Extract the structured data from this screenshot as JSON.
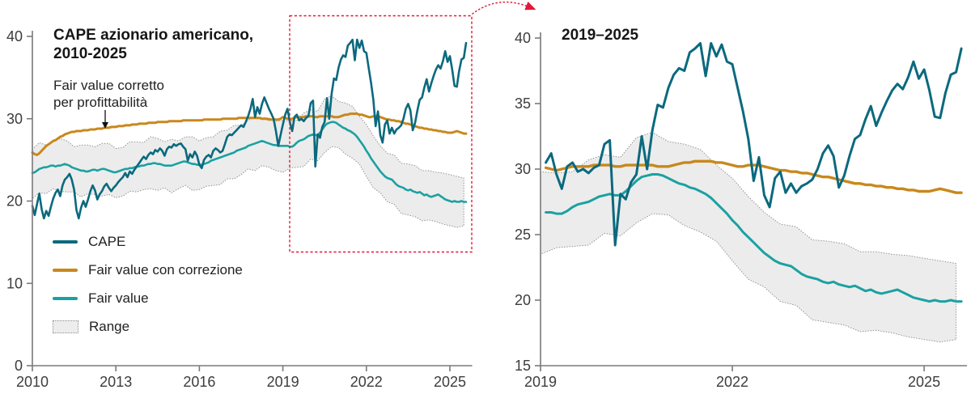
{
  "colors": {
    "cape": "#0b697e",
    "fair_value": "#1ba1a1",
    "fair_value_corrected": "#c8881c",
    "range_fill": "#ececec",
    "range_edge": "#8f8f8f",
    "highlight_red": "#e31837",
    "axis": "#7a7a7a",
    "tick_text": "#3d3d3d"
  },
  "left_chart": {
    "title_line1": "CAPE azionario americano,",
    "title_line2": "2010-2025",
    "annotation_line1": "Fair value corretto",
    "annotation_line2": "per profittabilità",
    "x_domain": [
      2010,
      2025.8
    ],
    "y_domain": [
      0,
      40
    ],
    "x_ticks": [
      2010,
      2013,
      2016,
      2019,
      2022,
      2025
    ],
    "y_ticks": [
      0,
      10,
      20,
      30,
      40
    ]
  },
  "right_chart": {
    "title": "2019–2025",
    "x_domain": [
      2019,
      2025.67
    ],
    "y_domain": [
      15,
      40
    ],
    "x_ticks": [
      2019,
      2022,
      2025
    ],
    "y_ticks": [
      15,
      20,
      25,
      30,
      35,
      40
    ],
    "data_start_year": 2019
  },
  "legend": {
    "items": [
      {
        "label": "CAPE",
        "color": "#0b697e",
        "swatch": "line"
      },
      {
        "label": "Fair value con correzione",
        "color": "#c8881c",
        "swatch": "line"
      },
      {
        "label": "Fair value",
        "color": "#1ba1a1",
        "swatch": "line"
      },
      {
        "label": "Range",
        "color": "#ededed",
        "swatch": "band"
      }
    ]
  },
  "chart_data": {
    "type": "line",
    "x_start": 2010.0,
    "x_step": 0.083333,
    "x_unit": "year (monthly samples)",
    "series": [
      {
        "name": "CAPE",
        "color": "#0b697e",
        "values": [
          19.4,
          18.3,
          19.6,
          20.9,
          19.0,
          17.9,
          18.8,
          18.2,
          19.3,
          20.3,
          21.0,
          21.4,
          20.6,
          21.9,
          22.6,
          22.9,
          23.3,
          22.6,
          21.4,
          18.9,
          17.9,
          19.2,
          20.0,
          19.3,
          20.2,
          21.2,
          21.9,
          21.3,
          20.2,
          20.8,
          21.2,
          21.8,
          22.1,
          21.6,
          21.2,
          21.6,
          21.9,
          22.3,
          22.6,
          22.9,
          23.4,
          22.9,
          23.6,
          23.3,
          23.8,
          24.2,
          24.6,
          25.0,
          25.4,
          25.1,
          25.6,
          25.9,
          25.7,
          26.2,
          26.0,
          26.4,
          26.1,
          25.5,
          26.3,
          26.6,
          26.5,
          26.9,
          26.7,
          26.9,
          27.0,
          26.6,
          26.3,
          24.9,
          25.7,
          25.3,
          26.0,
          25.5,
          24.4,
          24.0,
          25.0,
          25.4,
          25.6,
          25.3,
          26.1,
          26.4,
          26.2,
          25.9,
          26.1,
          26.9,
          27.8,
          28.1,
          28.0,
          28.3,
          28.6,
          28.9,
          29.2,
          29.0,
          29.6,
          30.3,
          31.2,
          32.4,
          30.2,
          31.4,
          30.6,
          31.8,
          32.6,
          31.9,
          31.2,
          30.6,
          30.0,
          28.5,
          26.7,
          28.0,
          29.3,
          30.5,
          31.2,
          29.6,
          28.5,
          30.2,
          30.5,
          29.8,
          30.0,
          29.7,
          30.1,
          30.3,
          31.9,
          32.2,
          24.2,
          28.1,
          27.7,
          29.0,
          29.6,
          32.5,
          30.0,
          33.0,
          34.9,
          34.7,
          36.2,
          37.2,
          37.7,
          37.5,
          38.9,
          39.2,
          39.6,
          37.1,
          39.6,
          38.6,
          39.5,
          38.2,
          38.0,
          36.2,
          34.4,
          32.3,
          29.1,
          30.9,
          28.0,
          27.1,
          29.3,
          29.8,
          28.2,
          28.9,
          28.2,
          28.7,
          28.9,
          29.2,
          30.0,
          31.2,
          31.8,
          31.0,
          28.6,
          29.5,
          31.0,
          32.3,
          32.6,
          33.8,
          34.8,
          33.3,
          34.3,
          35.2,
          36.0,
          36.5,
          36.1,
          37.0,
          38.2,
          36.9,
          37.6,
          36.0,
          34.0,
          33.9,
          35.8,
          37.2,
          37.4,
          39.2
        ]
      },
      {
        "name": "Fair value",
        "color": "#1ba1a1",
        "values": [
          23.4,
          23.5,
          23.7,
          23.9,
          24.0,
          24.1,
          24.1,
          24.2,
          24.3,
          24.3,
          24.2,
          24.3,
          24.3,
          24.4,
          24.5,
          24.4,
          24.3,
          24.1,
          24.0,
          23.9,
          23.8,
          23.7,
          23.7,
          23.6,
          23.6,
          23.7,
          23.8,
          23.8,
          23.7,
          23.8,
          23.9,
          23.9,
          23.8,
          23.7,
          23.6,
          23.5,
          23.5,
          23.6,
          23.7,
          23.8,
          23.9,
          23.9,
          24.0,
          24.0,
          24.1,
          24.2,
          24.2,
          24.3,
          24.3,
          24.4,
          24.5,
          24.5,
          24.6,
          24.6,
          24.5,
          24.5,
          24.4,
          24.3,
          24.3,
          24.3,
          24.3,
          24.4,
          24.5,
          24.6,
          24.7,
          24.8,
          24.8,
          24.7,
          24.6,
          24.5,
          24.5,
          24.4,
          24.4,
          24.4,
          24.5,
          24.6,
          24.7,
          24.9,
          25.0,
          25.1,
          25.2,
          25.3,
          25.4,
          25.5,
          25.6,
          25.7,
          25.8,
          25.9,
          26.1,
          26.2,
          26.3,
          26.4,
          26.5,
          26.7,
          26.8,
          26.9,
          27.0,
          27.1,
          27.2,
          27.3,
          27.2,
          27.1,
          27.0,
          26.9,
          26.8,
          26.8,
          26.7,
          26.7,
          26.7,
          26.7,
          26.7,
          26.6,
          26.6,
          26.8,
          27.1,
          27.3,
          27.4,
          27.5,
          27.7,
          27.9,
          28.0,
          28.1,
          28.0,
          28.0,
          28.3,
          28.7,
          29.1,
          29.4,
          29.5,
          29.6,
          29.6,
          29.5,
          29.3,
          29.1,
          28.9,
          28.8,
          28.6,
          28.5,
          28.3,
          28.1,
          27.8,
          27.4,
          27.0,
          26.6,
          26.1,
          25.7,
          25.2,
          24.8,
          24.4,
          24.0,
          23.6,
          23.3,
          23.0,
          22.8,
          22.7,
          22.6,
          22.3,
          22.0,
          21.8,
          21.7,
          21.6,
          21.4,
          21.3,
          21.4,
          21.2,
          21.1,
          21.0,
          21.1,
          20.9,
          20.7,
          20.8,
          20.6,
          20.5,
          20.6,
          20.7,
          20.8,
          20.6,
          20.4,
          20.2,
          20.1,
          20.0,
          19.9,
          20.0,
          19.9,
          19.9,
          20.0,
          19.9,
          19.9
        ]
      },
      {
        "name": "Fair value con correzione",
        "color": "#c8881c",
        "values": [
          25.9,
          25.7,
          25.6,
          25.8,
          26.1,
          26.4,
          26.7,
          26.9,
          27.1,
          27.3,
          27.4,
          27.6,
          27.8,
          27.9,
          28.1,
          28.2,
          28.3,
          28.4,
          28.4,
          28.5,
          28.5,
          28.5,
          28.6,
          28.6,
          28.6,
          28.7,
          28.7,
          28.7,
          28.8,
          28.8,
          28.8,
          28.9,
          28.9,
          28.9,
          29.0,
          29.0,
          29.0,
          29.1,
          29.1,
          29.1,
          29.2,
          29.2,
          29.2,
          29.3,
          29.3,
          29.3,
          29.4,
          29.4,
          29.4,
          29.4,
          29.5,
          29.5,
          29.5,
          29.5,
          29.6,
          29.6,
          29.6,
          29.6,
          29.6,
          29.7,
          29.7,
          29.7,
          29.7,
          29.7,
          29.7,
          29.8,
          29.8,
          29.8,
          29.8,
          29.8,
          29.8,
          29.8,
          29.8,
          29.8,
          29.9,
          29.9,
          29.9,
          29.9,
          29.9,
          29.9,
          29.9,
          29.9,
          30.0,
          30.0,
          30.0,
          30.0,
          30.0,
          30.0,
          30.0,
          30.1,
          30.1,
          30.1,
          30.1,
          30.1,
          30.1,
          30.1,
          30.1,
          30.1,
          30.1,
          30.0,
          30.0,
          30.0,
          29.9,
          29.9,
          29.9,
          29.9,
          29.9,
          30.0,
          30.2,
          30.1,
          30.0,
          29.9,
          30.0,
          30.1,
          30.2,
          30.2,
          30.2,
          30.2,
          30.3,
          30.3,
          30.3,
          30.3,
          30.2,
          30.2,
          30.3,
          30.3,
          30.3,
          30.3,
          30.3,
          30.3,
          30.2,
          30.2,
          30.2,
          30.3,
          30.4,
          30.5,
          30.5,
          30.6,
          30.6,
          30.6,
          30.6,
          30.5,
          30.5,
          30.4,
          30.3,
          30.2,
          30.2,
          30.3,
          30.3,
          30.3,
          30.2,
          30.1,
          30.0,
          29.9,
          29.9,
          29.8,
          29.8,
          29.7,
          29.7,
          29.6,
          29.5,
          29.4,
          29.4,
          29.3,
          29.2,
          29.1,
          29.0,
          28.9,
          28.9,
          28.8,
          28.8,
          28.7,
          28.7,
          28.6,
          28.6,
          28.5,
          28.5,
          28.4,
          28.4,
          28.3,
          28.3,
          28.3,
          28.4,
          28.5,
          28.4,
          28.3,
          28.2,
          28.2
        ]
      }
    ],
    "range": {
      "name": "Range",
      "x_start": 2010.0,
      "x_step": 0.25,
      "high": [
        26.3,
        27.1,
        26.8,
        27.3,
        27.6,
        27.3,
        26.6,
        26.8,
        26.8,
        26.6,
        27.0,
        27.0,
        26.4,
        26.5,
        27.2,
        27.2,
        27.1,
        27.8,
        27.6,
        27.2,
        27.5,
        27.3,
        27.8,
        27.8,
        27.3,
        27.7,
        27.8,
        28.5,
        28.6,
        29.2,
        29.2,
        29.8,
        30.2,
        30.1,
        30.1,
        29.7,
        29.8,
        29.7,
        29.8,
        30.7,
        31.1,
        30.9,
        32.4,
        32.8,
        32.1,
        31.9,
        31.5,
        30.3,
        29.3,
        27.9,
        26.7,
        25.8,
        25.6,
        24.6,
        24.5,
        24.3,
        23.7,
        23.7,
        23.5,
        23.4,
        23.2,
        23.0,
        22.8
      ],
      "low": [
        20.3,
        21.0,
        20.9,
        21.5,
        21.2,
        21.1,
        21.1,
        20.5,
        20.9,
        20.8,
        20.6,
        20.8,
        20.4,
        20.6,
        21.2,
        21.1,
        21.4,
        21.5,
        21.3,
        21.6,
        21.0,
        21.5,
        21.9,
        21.3,
        21.4,
        21.8,
        21.9,
        22.0,
        22.7,
        22.7,
        23.2,
        23.9,
        23.7,
        24.3,
        24.1,
        23.7,
        23.5,
        24.0,
        24.1,
        24.2,
        25.1,
        24.9,
        25.9,
        26.6,
        26.5,
        25.7,
        25.2,
        24.5,
        23.0,
        21.6,
        21.0,
        19.9,
        19.6,
        18.5,
        18.3,
        18.1,
        17.6,
        17.7,
        17.5,
        17.2,
        17.0,
        16.8,
        17.0
      ]
    }
  }
}
